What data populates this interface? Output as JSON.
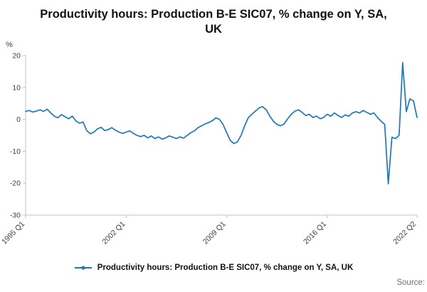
{
  "title": "Productivity hours: Production B-E SIC07, % change on Y, SA, UK",
  "legend": {
    "label": "Productivity hours: Production B-E SIC07, % change on Y, SA, UK"
  },
  "source_label": "Source:",
  "chart_data": {
    "type": "line",
    "title": "Productivity hours: Production B-E SIC07, % change on Y, SA, UK",
    "xlabel": "",
    "ylabel": "%",
    "ylim": [
      -30,
      20
    ],
    "yticks": [
      20,
      10,
      0,
      -10,
      -20,
      -30
    ],
    "xtick_labels": [
      "1995 Q1",
      "2002 Q1",
      "2009 Q1",
      "2016 Q1",
      "2022 Q2"
    ],
    "xtick_indices": [
      0,
      28,
      56,
      84,
      109
    ],
    "line_color": "#1f77b4",
    "axis_color": "#c0c0c0",
    "tick_text_color": "#414042",
    "grid": false,
    "legend_position": "bottom",
    "x": [
      "1995 Q1",
      "1995 Q2",
      "1995 Q3",
      "1995 Q4",
      "1996 Q1",
      "1996 Q2",
      "1996 Q3",
      "1996 Q4",
      "1997 Q1",
      "1997 Q2",
      "1997 Q3",
      "1997 Q4",
      "1998 Q1",
      "1998 Q2",
      "1998 Q3",
      "1998 Q4",
      "1999 Q1",
      "1999 Q2",
      "1999 Q3",
      "1999 Q4",
      "2000 Q1",
      "2000 Q2",
      "2000 Q3",
      "2000 Q4",
      "2001 Q1",
      "2001 Q2",
      "2001 Q3",
      "2001 Q4",
      "2002 Q1",
      "2002 Q2",
      "2002 Q3",
      "2002 Q4",
      "2003 Q1",
      "2003 Q2",
      "2003 Q3",
      "2003 Q4",
      "2004 Q1",
      "2004 Q2",
      "2004 Q3",
      "2004 Q4",
      "2005 Q1",
      "2005 Q2",
      "2005 Q3",
      "2005 Q4",
      "2006 Q1",
      "2006 Q2",
      "2006 Q3",
      "2006 Q4",
      "2007 Q1",
      "2007 Q2",
      "2007 Q3",
      "2007 Q4",
      "2008 Q1",
      "2008 Q2",
      "2008 Q3",
      "2008 Q4",
      "2009 Q1",
      "2009 Q2",
      "2009 Q3",
      "2009 Q4",
      "2010 Q1",
      "2010 Q2",
      "2010 Q3",
      "2010 Q4",
      "2011 Q1",
      "2011 Q2",
      "2011 Q3",
      "2011 Q4",
      "2012 Q1",
      "2012 Q2",
      "2012 Q3",
      "2012 Q4",
      "2013 Q1",
      "2013 Q2",
      "2013 Q3",
      "2013 Q4",
      "2014 Q1",
      "2014 Q2",
      "2014 Q3",
      "2014 Q4",
      "2015 Q1",
      "2015 Q2",
      "2015 Q3",
      "2015 Q4",
      "2016 Q1",
      "2016 Q2",
      "2016 Q3",
      "2016 Q4",
      "2017 Q1",
      "2017 Q2",
      "2017 Q3",
      "2017 Q4",
      "2018 Q1",
      "2018 Q2",
      "2018 Q3",
      "2018 Q4",
      "2019 Q1",
      "2019 Q2",
      "2019 Q3",
      "2019 Q4",
      "2020 Q1",
      "2020 Q2",
      "2020 Q3",
      "2020 Q4",
      "2021 Q1",
      "2021 Q2",
      "2021 Q3",
      "2021 Q4",
      "2022 Q1",
      "2022 Q2"
    ],
    "values": [
      2.5,
      2.8,
      2.3,
      2.6,
      3.0,
      2.5,
      3.2,
      2.0,
      1.0,
      0.5,
      1.5,
      0.8,
      0.2,
      1.0,
      -0.5,
      -1.2,
      -0.8,
      -3.5,
      -4.5,
      -4.0,
      -3.0,
      -2.5,
      -3.5,
      -3.2,
      -2.6,
      -3.4,
      -4.0,
      -4.4,
      -4.0,
      -3.6,
      -4.4,
      -5.0,
      -5.4,
      -5.0,
      -5.8,
      -5.2,
      -6.0,
      -5.5,
      -6.2,
      -5.8,
      -5.2,
      -5.6,
      -6.0,
      -5.5,
      -5.9,
      -5.0,
      -4.2,
      -3.6,
      -2.6,
      -2.0,
      -1.4,
      -1.0,
      -0.4,
      0.5,
      0.0,
      -1.6,
      -4.2,
      -6.6,
      -7.6,
      -7.0,
      -5.0,
      -2.0,
      0.5,
      1.6,
      2.6,
      3.6,
      4.0,
      3.0,
      1.0,
      -0.6,
      -1.6,
      -2.0,
      -1.4,
      0.2,
      1.6,
      2.6,
      3.0,
      2.2,
      1.2,
      1.6,
      0.6,
      1.0,
      0.2,
      0.6,
      1.6,
      1.0,
      2.0,
      1.2,
      0.6,
      1.4,
      1.0,
      2.0,
      2.4,
      2.0,
      2.8,
      2.2,
      1.6,
      2.0,
      0.6,
      -0.6,
      -1.6,
      -20.2,
      -5.6,
      -6.0,
      -5.0,
      17.8,
      2.4,
      6.4,
      5.8,
      0.6
    ]
  }
}
